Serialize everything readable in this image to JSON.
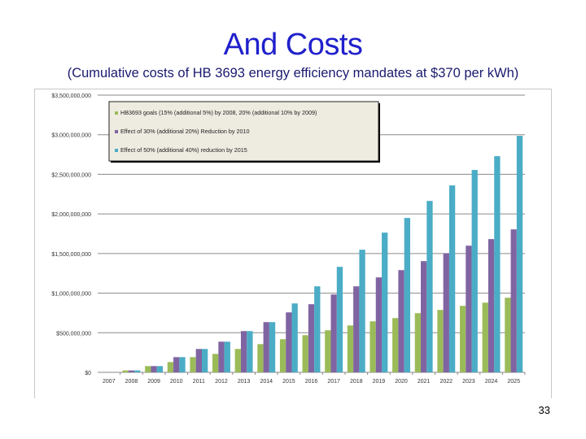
{
  "slide": {
    "title": "And Costs",
    "subtitle": "(Cumulative costs of HB 3693 energy efficiency mandates at $370 per kWh)",
    "page_number": "33"
  },
  "chart_data": {
    "type": "bar",
    "title": "",
    "xlabel": "",
    "ylabel": "",
    "ylim": [
      0,
      3500000000
    ],
    "grid": true,
    "legend_position": "top-left",
    "y_ticks": [
      0,
      500000000,
      1000000000,
      1500000000,
      2000000000,
      2500000000,
      3000000000,
      3500000000
    ],
    "y_tick_labels": [
      "$0",
      "$500,000,000",
      "$1,000,000,000",
      "$1,500,000,000",
      "$2,000,000,000",
      "$2,500,000,000",
      "$3,000,000,000",
      "$3,500,000,000"
    ],
    "categories": [
      "2007",
      "2008",
      "2009",
      "2010",
      "2011",
      "2012",
      "2013",
      "2014",
      "2015",
      "2016",
      "2017",
      "2018",
      "2019",
      "2020",
      "2021",
      "2022",
      "2023",
      "2024",
      "2025"
    ],
    "series": [
      {
        "name": "HB3693 goals (15% (additional 5%) by 2008, 20% (additional 10% by 2009)",
        "color": "#9bbb59",
        "values": [
          0,
          24000000,
          79000000,
          130000000,
          192000000,
          233000000,
          295000000,
          356000000,
          418000000,
          469000000,
          531000000,
          592000000,
          644000000,
          685000000,
          747000000,
          788000000,
          839000000,
          880000000,
          942000000
        ]
      },
      {
        "name": "Effect of 30% (additional 20%) Reduction by 2010",
        "color": "#8064a2",
        "values": [
          0,
          24000000,
          79000000,
          192000000,
          295000000,
          387000000,
          521000000,
          634000000,
          757000000,
          860000000,
          983000000,
          1086000000,
          1199000000,
          1291000000,
          1404000000,
          1503000000,
          1599000000,
          1682000000,
          1805000000
        ]
      },
      {
        "name": "Effect of 50% (additional 40%) reduction by 2015",
        "color": "#4bacc6",
        "values": [
          0,
          24000000,
          79000000,
          192000000,
          295000000,
          387000000,
          521000000,
          634000000,
          870000000,
          1086000000,
          1332000000,
          1548000000,
          1764000000,
          1949000000,
          2164000000,
          2360000000,
          2555000000,
          2729000000,
          2986000000
        ]
      }
    ]
  }
}
